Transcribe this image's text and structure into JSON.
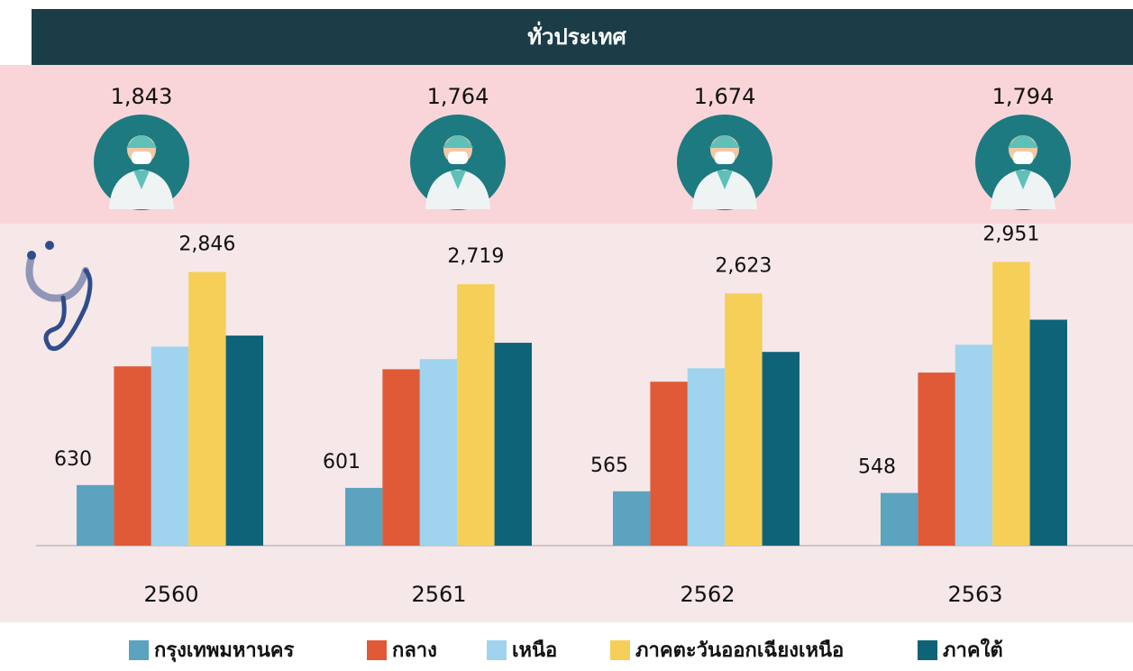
{
  "title": "ทั่วประเทศ",
  "header_counts": {
    "values": [
      1843,
      1764,
      1674,
      1794
    ],
    "value_labels": [
      "1,843",
      "1,764",
      "1,674",
      "1,794"
    ]
  },
  "chart_data": {
    "type": "bar",
    "categories": [
      "2560",
      "2561",
      "2562",
      "2563"
    ],
    "series": [
      {
        "name": "กรุงเทพมหานคร",
        "color": "#5ba3bf",
        "values": [
          630,
          601,
          565,
          548
        ]
      },
      {
        "name": "กลาง",
        "color": "#e05a38",
        "values": [
          1865,
          1835,
          1705,
          1800
        ]
      },
      {
        "name": "เหนือ",
        "color": "#9fd3ee",
        "values": [
          2070,
          1940,
          1845,
          2090
        ]
      },
      {
        "name": "ภาคตะวันออกเฉียงเหนือ",
        "color": "#f5cf57",
        "values": [
          2846,
          2719,
          2623,
          2951
        ],
        "value_labels": [
          "2,846",
          "2,719",
          "2,623",
          "2,951"
        ]
      },
      {
        "name": "ภาคใต้",
        "color": "#0e6379",
        "values": [
          2185,
          2110,
          2015,
          2350
        ]
      }
    ]
  }
}
